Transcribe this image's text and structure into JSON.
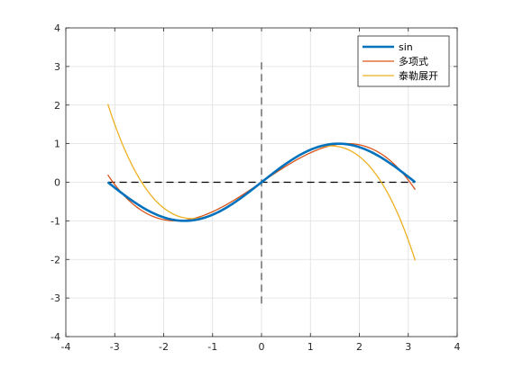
{
  "chart_data": {
    "type": "line",
    "title": "",
    "xlabel": "",
    "ylabel": "",
    "xlim": [
      -4,
      4
    ],
    "ylim": [
      -4,
      4
    ],
    "xticks": [
      -4,
      -3,
      -2,
      -1,
      0,
      1,
      2,
      3,
      4
    ],
    "yticks": [
      -4,
      -3,
      -2,
      -1,
      0,
      1,
      2,
      3,
      4
    ],
    "xtick_labels": [
      "-4",
      "-3",
      "-2",
      "-1",
      "0",
      "1",
      "2",
      "3",
      "4"
    ],
    "ytick_labels": [
      "-4",
      "-3",
      "-2",
      "-1",
      "0",
      "1",
      "2",
      "3",
      "4"
    ],
    "grid": true,
    "legend_position": "top-right",
    "domain": [
      -3.14159,
      3.14159
    ],
    "series": [
      {
        "name": "sin",
        "function": "sin(x)",
        "color": "#0072BD",
        "width": "thick"
      },
      {
        "name": "多项式",
        "function": "polynomial fit, coefficients [0, 0.857, 0, -0.093]",
        "coefficients": [
          0,
          0.857,
          0,
          -0.093
        ],
        "color": "#D95319",
        "width": "normal"
      },
      {
        "name": "泰勒展开",
        "function": "x - x^3/6",
        "coefficients": [
          0,
          1,
          0,
          -0.16667
        ],
        "color": "#EDB120",
        "width": "normal"
      }
    ],
    "reference_lines": [
      {
        "name": "horizontal-axis-line",
        "orientation": "horizontal",
        "value": 0,
        "from": -3.14159,
        "to": 3.14159,
        "style": "dashed",
        "color": "#000000"
      },
      {
        "name": "vertical-axis-line",
        "orientation": "vertical",
        "value": 0,
        "from": -3.14159,
        "to": 3.14159,
        "style": "dashed",
        "color": "#595959"
      }
    ]
  }
}
